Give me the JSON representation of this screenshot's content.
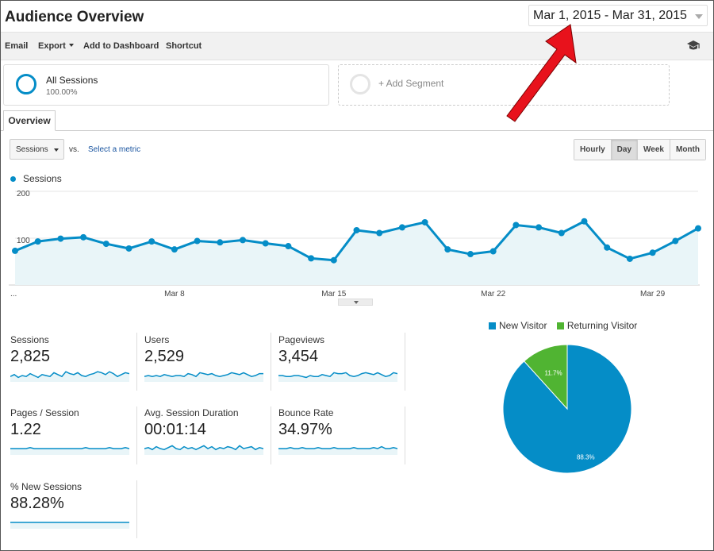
{
  "header": {
    "title": "Audience Overview",
    "date_range": "Mar 1, 2015 - Mar 31, 2015"
  },
  "toolbar": {
    "email": "Email",
    "export": "Export",
    "add_to_dashboard": "Add to Dashboard",
    "shortcut": "Shortcut",
    "help_icon": "graduation-cap-icon"
  },
  "segments": {
    "all_sessions_name": "All Sessions",
    "all_sessions_pct": "100.00%",
    "add_segment": "+ Add Segment"
  },
  "tabs": [
    {
      "label": "Overview"
    }
  ],
  "chart_controls": {
    "metric": "Sessions",
    "vs": "vs.",
    "select_metric": "Select a metric",
    "granularity": [
      "Hourly",
      "Day",
      "Week",
      "Month"
    ],
    "active_granularity": "Day"
  },
  "annotation": {
    "arrow_color": "#e8121c"
  },
  "chart_data": [
    {
      "type": "area",
      "series": [
        {
          "name": "Sessions",
          "color": "#058dc7",
          "values": [
            73,
            93,
            99,
            102,
            88,
            78,
            93,
            76,
            94,
            91,
            96,
            89,
            83,
            57,
            53,
            117,
            111,
            123,
            134,
            76,
            66,
            72,
            128,
            123,
            111,
            136,
            80,
            56,
            69,
            94,
            121
          ]
        }
      ],
      "x": [
        1,
        2,
        3,
        4,
        5,
        6,
        7,
        8,
        9,
        10,
        11,
        12,
        13,
        14,
        15,
        16,
        17,
        18,
        19,
        20,
        21,
        22,
        23,
        24,
        25,
        26,
        27,
        28,
        29,
        30,
        31
      ],
      "x_tick_labels": [
        "...",
        "Mar 8",
        "Mar 15",
        "Mar 22",
        "Mar 29"
      ],
      "y_tick_labels": [
        "200",
        "100"
      ],
      "ylim": [
        0,
        200
      ],
      "grid": true,
      "legend": "top-left"
    },
    {
      "type": "pie",
      "categories": [
        "New Visitor",
        "Returning Visitor"
      ],
      "values": [
        88.3,
        11.7
      ],
      "labels": [
        "88.3%",
        "11.7%"
      ],
      "colors": [
        "#058dc7",
        "#50b432"
      ],
      "legend": "top"
    }
  ],
  "scorecards": [
    {
      "label": "Sessions",
      "value": "2,825",
      "spark": [
        4,
        6,
        3,
        5,
        4,
        7,
        5,
        3,
        6,
        5,
        4,
        8,
        6,
        4,
        9,
        7,
        6,
        8,
        5,
        4,
        6,
        7,
        9,
        8,
        6,
        9,
        7,
        4,
        6,
        8,
        7
      ]
    },
    {
      "label": "Users",
      "value": "2,529",
      "spark": [
        4,
        5,
        4,
        5,
        4,
        6,
        5,
        4,
        5,
        5,
        4,
        7,
        6,
        4,
        8,
        7,
        6,
        7,
        5,
        4,
        5,
        6,
        8,
        7,
        6,
        8,
        6,
        4,
        5,
        7,
        7
      ]
    },
    {
      "label": "Pageviews",
      "value": "3,454",
      "spark": [
        5,
        5,
        4,
        4,
        5,
        5,
        4,
        3,
        5,
        4,
        4,
        6,
        5,
        4,
        8,
        7,
        7,
        8,
        5,
        4,
        5,
        7,
        8,
        7,
        6,
        8,
        6,
        4,
        5,
        8,
        7
      ]
    },
    {
      "label": "Pages / Session",
      "value": "1.22",
      "spark": [
        5,
        5,
        5,
        5,
        5,
        6,
        5,
        5,
        5,
        5,
        5,
        5,
        5,
        5,
        5,
        5,
        5,
        5,
        5,
        6,
        5,
        5,
        5,
        5,
        5,
        6,
        5,
        5,
        5,
        6,
        5
      ]
    },
    {
      "label": "Avg. Session Duration",
      "value": "00:01:14",
      "spark": [
        5,
        6,
        4,
        7,
        5,
        4,
        6,
        8,
        5,
        4,
        7,
        5,
        6,
        4,
        6,
        8,
        5,
        7,
        4,
        6,
        5,
        7,
        6,
        4,
        8,
        5,
        6,
        7,
        4,
        6,
        5
      ]
    },
    {
      "label": "Bounce Rate",
      "value": "34.97%",
      "spark": [
        5,
        5,
        5,
        6,
        5,
        5,
        6,
        5,
        5,
        5,
        6,
        5,
        5,
        5,
        6,
        5,
        5,
        5,
        5,
        6,
        5,
        5,
        5,
        5,
        6,
        5,
        7,
        5,
        5,
        6,
        5
      ]
    },
    {
      "label": "% New Sessions",
      "value": "88.28%",
      "spark": [
        5,
        5,
        5,
        5,
        5,
        5,
        5,
        5,
        5,
        5,
        5,
        5,
        5,
        5,
        5,
        5,
        5,
        5,
        5,
        5,
        5,
        5,
        5,
        5,
        5,
        5,
        5,
        5,
        5,
        5,
        5
      ]
    }
  ]
}
